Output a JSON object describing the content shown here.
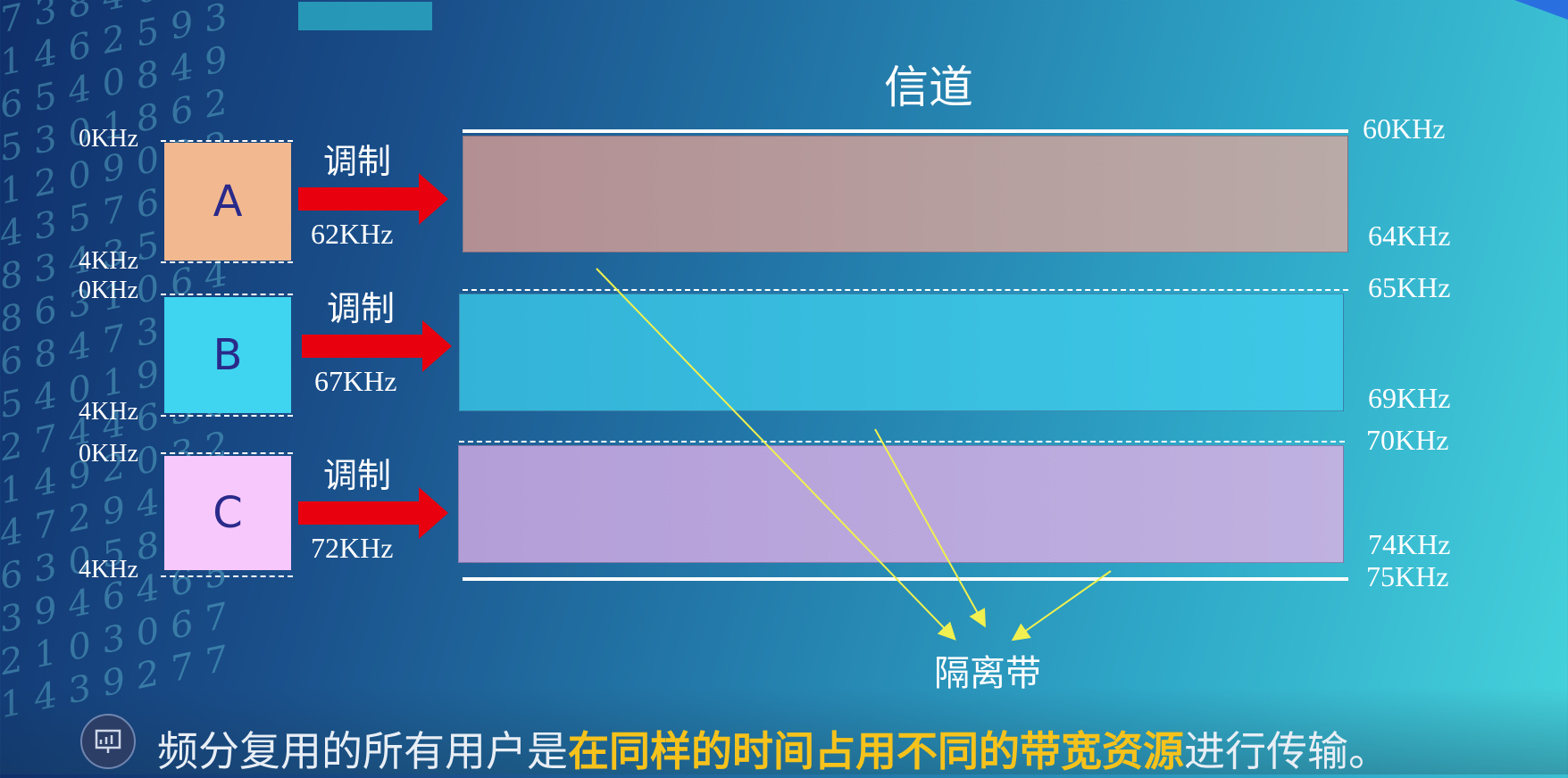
{
  "title": "信道",
  "guard_label": "隔离带",
  "signals": [
    {
      "label": "A",
      "color": "#f2b991",
      "low": "0KHz",
      "high": "4KHz",
      "mod_label": "调制",
      "carrier": "62KHz"
    },
    {
      "label": "B",
      "color": "#3fd4f0",
      "low": "0KHz",
      "high": "4KHz",
      "mod_label": "调制",
      "carrier": "67KHz"
    },
    {
      "label": "C",
      "color": "#f7c8fb",
      "low": "0KHz",
      "high": "4KHz",
      "mod_label": "调制",
      "carrier": "72KHz"
    }
  ],
  "channel_freqs": [
    "60KHz",
    "64KHz",
    "65KHz",
    "69KHz",
    "70KHz",
    "74KHz",
    "75KHz"
  ],
  "band_colors": [
    "#b5999d",
    "#3bbde0",
    "#b8a7dd"
  ],
  "caption": {
    "prefix": "频分复用的所有用户是",
    "highlight": "在同样的时间占用不同的带宽资源",
    "suffix": "进行传输。"
  },
  "icons": {
    "caption": "presentation-icon"
  },
  "colors": {
    "arrow": "#e8000e",
    "pointer": "#f0f050",
    "highlight": "#f6c21c"
  }
}
